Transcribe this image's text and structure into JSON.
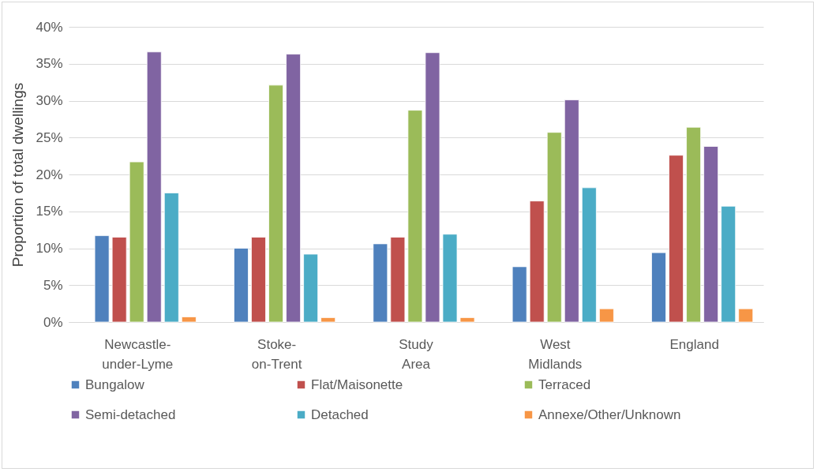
{
  "chart_data": {
    "type": "bar",
    "ylabel": "Proportion of total dwellings",
    "categories": [
      "Newcastle-under-Lyme",
      "Stoke-on-Trent",
      "Study Area",
      "West Midlands",
      "England"
    ],
    "series": [
      {
        "name": "Bungalow",
        "color": "#4f81bd",
        "values": [
          11.7,
          10.0,
          10.6,
          7.5,
          9.4
        ]
      },
      {
        "name": "Flat/Maisonette",
        "color": "#c0504d",
        "values": [
          11.5,
          11.5,
          11.5,
          16.4,
          22.6
        ]
      },
      {
        "name": "Terraced",
        "color": "#9bbb59",
        "values": [
          21.7,
          32.1,
          28.7,
          25.7,
          26.4
        ]
      },
      {
        "name": "Semi-detached",
        "color": "#8064a2",
        "values": [
          36.6,
          36.3,
          36.5,
          30.1,
          23.8
        ]
      },
      {
        "name": "Detached",
        "color": "#4bacc6",
        "values": [
          17.5,
          9.2,
          11.9,
          18.2,
          15.7
        ]
      },
      {
        "name": "Annexe/Other/Unknown",
        "color": "#f79646",
        "values": [
          0.7,
          0.6,
          0.6,
          1.8,
          1.8
        ]
      }
    ],
    "ylim": [
      0,
      40
    ],
    "yticks": [
      {
        "value": 0,
        "label": "0%"
      },
      {
        "value": 5,
        "label": "5%"
      },
      {
        "value": 10,
        "label": "10%"
      },
      {
        "value": 15,
        "label": "15%"
      },
      {
        "value": 20,
        "label": "20%"
      },
      {
        "value": 25,
        "label": "25%"
      },
      {
        "value": 30,
        "label": "30%"
      },
      {
        "value": 35,
        "label": "35%"
      },
      {
        "value": 40,
        "label": "40%"
      }
    ],
    "grid": "y",
    "legend": "bottom"
  }
}
